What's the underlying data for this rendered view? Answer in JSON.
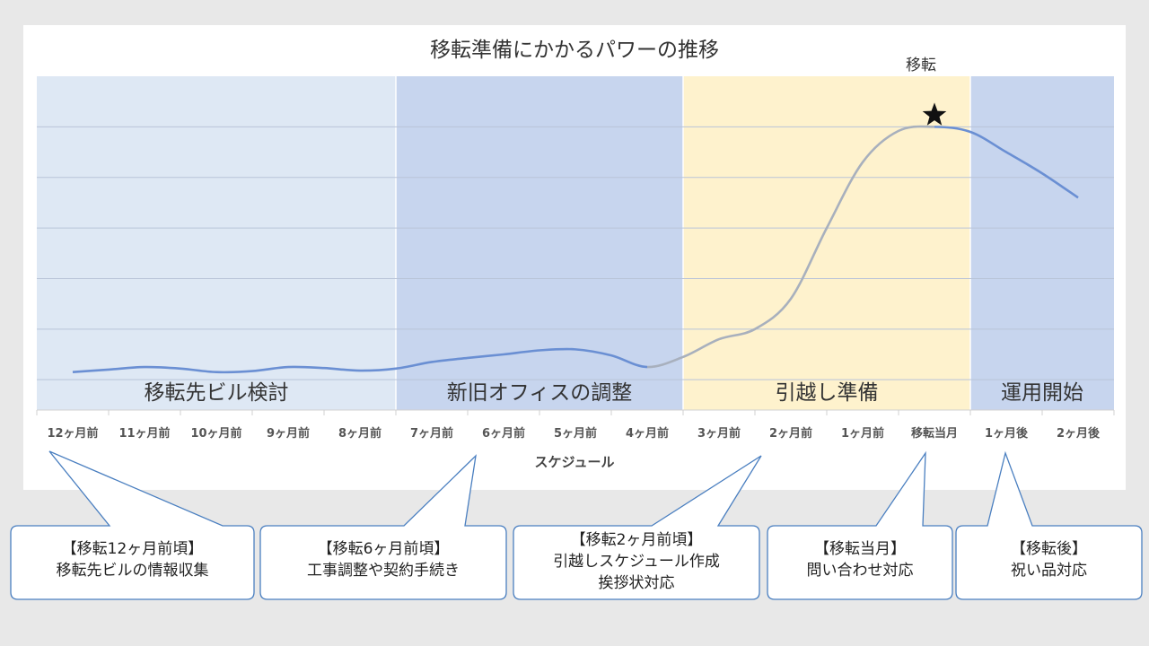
{
  "chart_data": {
    "type": "line",
    "title": "移転準備にかかるパワーの推移",
    "xlabel": "スケジュール",
    "ylabel": "",
    "categories": [
      "12ヶ月前",
      "11ヶ月前",
      "10ヶ月前",
      "9ヶ月前",
      "8ヶ月前",
      "7ヶ月前",
      "6ヶ月前",
      "5ヶ月前",
      "4ヶ月前",
      "3ヶ月前",
      "2ヶ月前",
      "1ヶ月前",
      "移転当月",
      "1ヶ月後",
      "2ヶ月後"
    ],
    "x": [
      -12,
      -11.5,
      -11,
      -10.5,
      -10,
      -9.5,
      -9,
      -8.5,
      -8,
      -7.5,
      -7,
      -6.5,
      -6,
      -5.5,
      -5,
      -4.5,
      -4,
      -3.5,
      -3,
      -2.5,
      -2,
      -1.5,
      -1,
      -0.5,
      0,
      0.5,
      1,
      1.5,
      2
    ],
    "values": [
      0.15,
      0.2,
      0.25,
      0.22,
      0.15,
      0.17,
      0.25,
      0.23,
      0.18,
      0.22,
      0.35,
      0.43,
      0.5,
      0.58,
      0.6,
      0.48,
      0.25,
      0.45,
      0.8,
      1.0,
      1.6,
      3.0,
      4.3,
      4.92,
      5.0,
      4.9,
      4.5,
      4.08,
      3.6
    ],
    "colors": {
      "before": "#6a8fd3",
      "prep": "#a8b0bd",
      "after": "#6a8fd3"
    },
    "ylim": [
      -0.6,
      6.0
    ],
    "grid": true,
    "legend": "none",
    "phases": [
      {
        "label": "移転先ビル検討",
        "color": "#dee8f4"
      },
      {
        "label": "新旧オフィスの調整",
        "color": "#c7d5ee"
      },
      {
        "label": "引越し準備",
        "color": "#fef2cd"
      },
      {
        "label": "運用開始",
        "color": "#c7d5ee"
      }
    ],
    "annotation": {
      "label": "移転",
      "marker": "star-icon"
    }
  },
  "callouts": [
    {
      "lines": [
        "【移転12ヶ月前頃】",
        "移転先ビルの情報収集"
      ]
    },
    {
      "lines": [
        "【移転6ヶ月前頃】",
        "工事調整や契約手続き"
      ]
    },
    {
      "lines": [
        "【移転2ヶ月前頃】",
        "引越しスケジュール作成",
        "挨拶状対応"
      ]
    },
    {
      "lines": [
        "【移転当月】",
        "問い合わせ対応"
      ]
    },
    {
      "lines": [
        "【移転後】",
        "祝い品対応"
      ]
    }
  ]
}
